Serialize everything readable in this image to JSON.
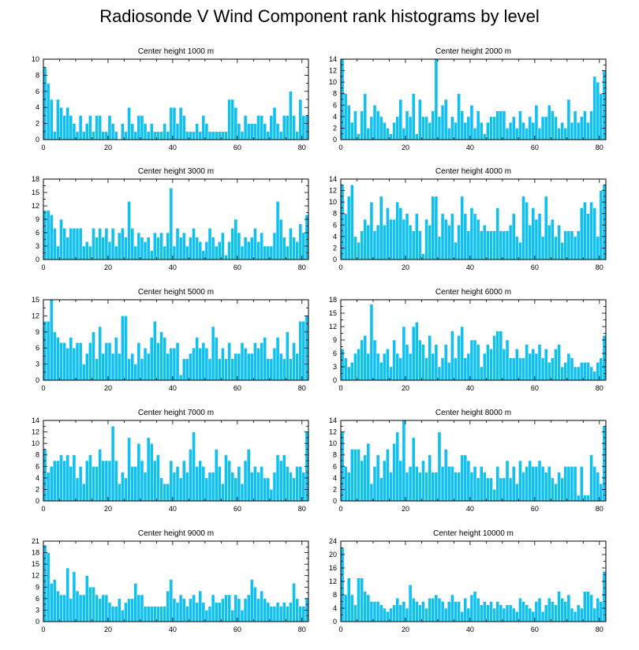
{
  "title": "Radiosonde V Wind Component rank histograms by level",
  "colors": {
    "bar": "#10c0f0",
    "bar_edge": "#ffffff",
    "axis": "#000000"
  },
  "chart_data": [
    {
      "type": "bar",
      "title": "Center height 1000 m",
      "xlim": [
        0,
        82
      ],
      "ylim": [
        0,
        10
      ],
      "xticks": [
        0,
        20,
        40,
        60,
        80
      ],
      "yticks": [
        0,
        2,
        4,
        6,
        8,
        10
      ],
      "values": [
        9,
        7,
        5,
        1,
        5,
        4,
        3,
        4,
        3,
        2,
        1,
        3,
        1,
        2,
        3,
        1,
        3,
        3,
        1,
        1,
        3,
        2,
        1,
        0,
        2,
        1,
        4,
        2,
        1,
        3,
        3,
        2,
        1,
        2,
        1,
        1,
        1,
        2,
        1,
        4,
        4,
        2,
        4,
        3,
        1,
        1,
        1,
        2,
        1,
        3,
        2,
        1,
        1,
        1,
        1,
        1,
        1,
        5,
        5,
        4,
        2,
        1,
        3,
        2,
        2,
        2,
        3,
        3,
        2,
        1,
        3,
        4,
        2,
        1,
        3,
        3,
        6,
        3,
        1,
        5,
        3,
        3
      ]
    },
    {
      "type": "bar",
      "title": "Center height 2000 m",
      "xlim": [
        0,
        82
      ],
      "ylim": [
        0,
        14
      ],
      "xticks": [
        0,
        20,
        40,
        60,
        80
      ],
      "yticks": [
        0,
        2,
        4,
        6,
        8,
        10,
        12,
        14
      ],
      "values": [
        14,
        8,
        6,
        3,
        5,
        1,
        5,
        8,
        2,
        4,
        6,
        5,
        4,
        3,
        2,
        1,
        3,
        4,
        7,
        2,
        5,
        4,
        8,
        1,
        7,
        4,
        4,
        3,
        5,
        14,
        4,
        6,
        7,
        2,
        4,
        3,
        8,
        5,
        3,
        4,
        6,
        2,
        5,
        3,
        1,
        3,
        4,
        4,
        5,
        5,
        5,
        2,
        3,
        4,
        2,
        5,
        3,
        2,
        4,
        3,
        6,
        2,
        4,
        4,
        6,
        5,
        4,
        2,
        3,
        2,
        7,
        3,
        5,
        3,
        4,
        5,
        3,
        5,
        11,
        10,
        8,
        12
      ]
    },
    {
      "type": "bar",
      "title": "Center height 3000 m",
      "xlim": [
        0,
        82
      ],
      "ylim": [
        0,
        18
      ],
      "xticks": [
        0,
        20,
        40,
        60,
        80
      ],
      "yticks": [
        0,
        3,
        6,
        9,
        12,
        15,
        18
      ],
      "values": [
        11,
        11,
        10,
        7,
        3,
        9,
        7,
        5,
        7,
        7,
        7,
        7,
        3,
        4,
        3,
        7,
        5,
        7,
        5,
        7,
        4,
        7,
        3,
        6,
        7,
        5,
        13,
        7,
        3,
        6,
        5,
        4,
        5,
        2,
        6,
        5,
        6,
        3,
        6,
        16,
        3,
        7,
        5,
        6,
        3,
        5,
        7,
        5,
        4,
        2,
        4,
        7,
        5,
        3,
        4,
        6,
        1,
        4,
        7,
        9,
        6,
        3,
        5,
        4,
        5,
        7,
        4,
        6,
        3,
        3,
        3,
        6,
        13,
        9,
        5,
        3,
        7,
        5,
        4,
        8,
        6,
        10
      ]
    },
    {
      "type": "bar",
      "title": "Center height 4000 m",
      "xlim": [
        0,
        82
      ],
      "ylim": [
        0,
        14
      ],
      "xticks": [
        0,
        20,
        40,
        60,
        80
      ],
      "yticks": [
        0,
        2,
        4,
        6,
        8,
        10,
        12,
        14
      ],
      "values": [
        13,
        8,
        11,
        13,
        4,
        3,
        5,
        7,
        6,
        10,
        5,
        6,
        11,
        6,
        9,
        7,
        7,
        10,
        9,
        7,
        8,
        6,
        5,
        8,
        5,
        1,
        7,
        6,
        11,
        11,
        4,
        8,
        7,
        6,
        8,
        3,
        6,
        11,
        8,
        5,
        9,
        8,
        7,
        5,
        6,
        5,
        5,
        5,
        9,
        5,
        5,
        5,
        6,
        8,
        4,
        3,
        11,
        10,
        6,
        9,
        7,
        8,
        4,
        11,
        6,
        7,
        4,
        6,
        3,
        5,
        5,
        5,
        4,
        5,
        9,
        10,
        8,
        10,
        9,
        4,
        12,
        13
      ]
    },
    {
      "type": "bar",
      "title": "Center height 5000 m",
      "xlim": [
        0,
        82
      ],
      "ylim": [
        0,
        15
      ],
      "xticks": [
        0,
        20,
        40,
        60,
        80
      ],
      "yticks": [
        0,
        3,
        6,
        9,
        12,
        15
      ],
      "values": [
        11,
        11,
        15,
        9,
        8,
        7,
        7,
        6,
        8,
        6,
        7,
        7,
        3,
        5,
        7,
        9,
        4,
        10,
        5,
        7,
        7,
        5,
        8,
        5,
        12,
        12,
        4,
        5,
        3,
        7,
        4,
        6,
        5,
        8,
        11,
        7,
        9,
        8,
        5,
        6,
        6,
        7,
        1,
        4,
        4,
        5,
        6,
        8,
        6,
        7,
        6,
        4,
        10,
        8,
        4,
        6,
        4,
        7,
        4,
        5,
        5,
        7,
        6,
        5,
        5,
        7,
        6,
        7,
        8,
        4,
        4,
        6,
        8,
        5,
        4,
        9,
        4,
        7,
        5,
        11,
        11,
        12
      ]
    },
    {
      "type": "bar",
      "title": "Center height 6000 m",
      "xlim": [
        0,
        82
      ],
      "ylim": [
        0,
        18
      ],
      "xticks": [
        0,
        20,
        40,
        60,
        80
      ],
      "yticks": [
        0,
        3,
        6,
        9,
        12,
        15,
        18
      ],
      "values": [
        7,
        5,
        3,
        4,
        6,
        7,
        9,
        10,
        6,
        17,
        9,
        6,
        4,
        6,
        7,
        3,
        9,
        6,
        5,
        12,
        8,
        6,
        12,
        13,
        9,
        8,
        5,
        10,
        6,
        8,
        3,
        5,
        8,
        4,
        11,
        5,
        10,
        12,
        5,
        6,
        9,
        9,
        8,
        3,
        6,
        8,
        7,
        10,
        11,
        11,
        7,
        9,
        5,
        5,
        7,
        5,
        5,
        8,
        6,
        7,
        6,
        8,
        5,
        7,
        4,
        5,
        7,
        8,
        3,
        4,
        6,
        5,
        3,
        3,
        4,
        4,
        4,
        3,
        2,
        4,
        5,
        10
      ]
    },
    {
      "type": "bar",
      "title": "Center height 7000 m",
      "xlim": [
        0,
        82
      ],
      "ylim": [
        0,
        14
      ],
      "xticks": [
        0,
        20,
        40,
        60,
        80
      ],
      "yticks": [
        0,
        2,
        4,
        6,
        8,
        10,
        12,
        14
      ],
      "values": [
        9,
        5,
        6,
        7,
        7,
        8,
        7,
        8,
        6,
        8,
        4,
        6,
        3,
        7,
        8,
        6,
        6,
        9,
        7,
        7,
        7,
        13,
        7,
        3,
        5,
        4,
        11,
        6,
        6,
        10,
        7,
        5,
        11,
        10,
        7,
        8,
        4,
        3,
        3,
        7,
        5,
        6,
        4,
        7,
        5,
        9,
        12,
        6,
        7,
        6,
        4,
        5,
        5,
        9,
        6,
        3,
        8,
        7,
        5,
        4,
        6,
        3,
        7,
        9,
        5,
        6,
        5,
        6,
        4,
        4,
        2,
        5,
        8,
        7,
        8,
        6,
        5,
        4,
        6,
        6,
        5,
        12
      ]
    },
    {
      "type": "bar",
      "title": "Center height 8000 m",
      "xlim": [
        0,
        82
      ],
      "ylim": [
        0,
        14
      ],
      "xticks": [
        0,
        20,
        40,
        60,
        80
      ],
      "yticks": [
        0,
        2,
        4,
        6,
        8,
        10,
        12,
        14
      ],
      "values": [
        12,
        6,
        5,
        9,
        9,
        9,
        7,
        8,
        10,
        3,
        6,
        8,
        4,
        7,
        9,
        5,
        10,
        12,
        7,
        14,
        5,
        6,
        11,
        6,
        5,
        7,
        5,
        8,
        5,
        5,
        12,
        6,
        9,
        6,
        6,
        5,
        5,
        8,
        8,
        7,
        5,
        6,
        4,
        6,
        5,
        4,
        4,
        2,
        6,
        4,
        4,
        7,
        4,
        6,
        3,
        7,
        5,
        6,
        7,
        6,
        6,
        7,
        6,
        5,
        6,
        4,
        3,
        5,
        4,
        6,
        6,
        6,
        6,
        1,
        6,
        1,
        1,
        8,
        6,
        5,
        3,
        13
      ]
    },
    {
      "type": "bar",
      "title": "Center height 9000 m",
      "xlim": [
        0,
        82
      ],
      "ylim": [
        0,
        21
      ],
      "xticks": [
        0,
        20,
        40,
        60,
        80
      ],
      "yticks": [
        0,
        3,
        6,
        9,
        12,
        15,
        18,
        21
      ],
      "values": [
        20,
        18,
        10,
        11,
        8,
        7,
        7,
        14,
        6,
        13,
        8,
        7,
        7,
        12,
        9,
        9,
        7,
        6,
        7,
        7,
        5,
        4,
        4,
        6,
        3,
        5,
        6,
        6,
        10,
        7,
        7,
        4,
        4,
        4,
        4,
        4,
        4,
        4,
        8,
        11,
        6,
        5,
        7,
        6,
        4,
        6,
        7,
        5,
        8,
        5,
        3,
        4,
        7,
        5,
        5,
        6,
        7,
        7,
        3,
        7,
        6,
        3,
        6,
        7,
        11,
        9,
        6,
        8,
        6,
        5,
        4,
        4,
        5,
        4,
        5,
        4,
        5,
        10,
        6,
        4,
        4,
        6
      ]
    },
    {
      "type": "bar",
      "title": "Center height 10000 m",
      "xlim": [
        0,
        82
      ],
      "ylim": [
        0,
        24
      ],
      "xticks": [
        0,
        20,
        40,
        60,
        80
      ],
      "yticks": [
        0,
        4,
        8,
        12,
        16,
        20,
        24
      ],
      "values": [
        22,
        8,
        13,
        8,
        5,
        13,
        13,
        9,
        8,
        6,
        6,
        6,
        5,
        4,
        3,
        4,
        5,
        7,
        5,
        6,
        4,
        11,
        7,
        6,
        5,
        6,
        4,
        7,
        7,
        8,
        7,
        6,
        4,
        6,
        8,
        6,
        6,
        3,
        7,
        4,
        8,
        9,
        7,
        5,
        6,
        5,
        6,
        4,
        6,
        5,
        4,
        5,
        5,
        4,
        3,
        7,
        6,
        5,
        4,
        3,
        6,
        7,
        3,
        5,
        7,
        6,
        5,
        9,
        7,
        6,
        8,
        4,
        3,
        5,
        4,
        9,
        9,
        8,
        4,
        7,
        6,
        15
      ]
    }
  ]
}
